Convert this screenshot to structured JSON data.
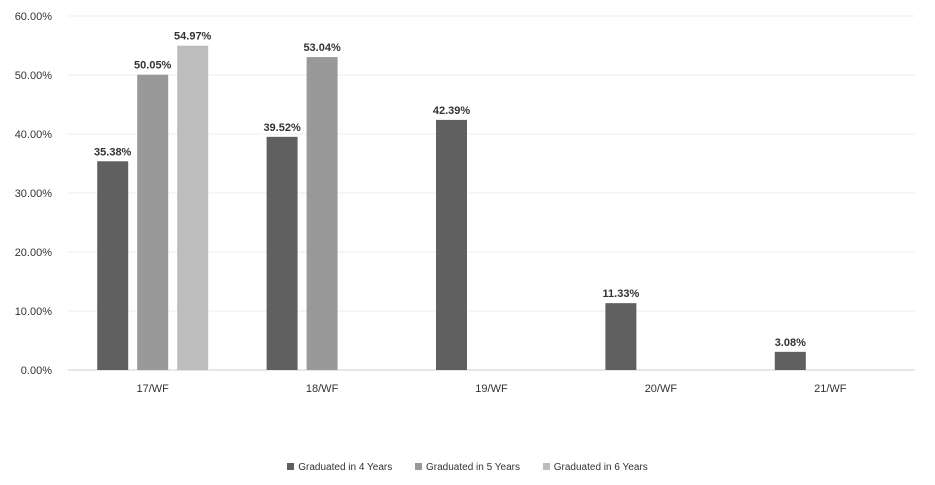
{
  "chart_data": {
    "type": "bar",
    "categories": [
      "17/WF",
      "18/WF",
      "19/WF",
      "20/WF",
      "21/WF"
    ],
    "series": [
      {
        "name": "Graduated in 4 Years",
        "color": "#606060",
        "values": [
          35.38,
          39.52,
          42.39,
          11.33,
          3.08
        ],
        "labels": [
          "35.38%",
          "39.52%",
          "42.39%",
          "11.33%",
          "3.08%"
        ]
      },
      {
        "name": "Graduated in 5 Years",
        "color": "#999999",
        "values": [
          50.05,
          53.04,
          null,
          null,
          null
        ],
        "labels": [
          "50.05%",
          "53.04%",
          "",
          "",
          ""
        ]
      },
      {
        "name": "Graduated in 6 Years",
        "color": "#bdbdbd",
        "values": [
          54.97,
          null,
          null,
          null,
          null
        ],
        "labels": [
          "54.97%",
          "",
          "",
          "",
          ""
        ]
      }
    ],
    "y_ticks": [
      "0.00%",
      "10.00%",
      "20.00%",
      "30.00%",
      "40.00%",
      "50.00%",
      "60.00%"
    ],
    "ylim": [
      0,
      60
    ],
    "grid": true,
    "legend_position": "bottom"
  }
}
